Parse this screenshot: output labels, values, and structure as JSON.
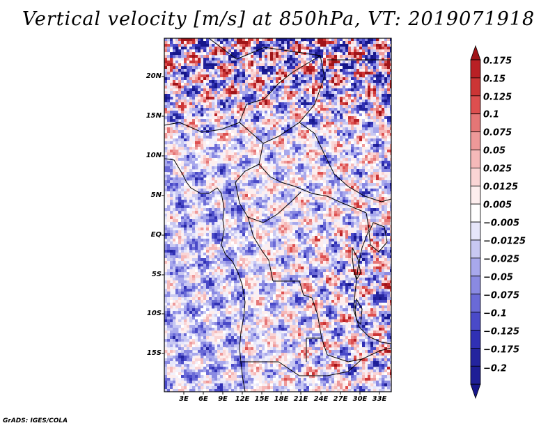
{
  "title": "Vertical velocity [m/s] at 850hPa, VT: 2019071918",
  "credit": "GrADS: IGES/COLA",
  "map": {
    "variable": "Vertical velocity",
    "units": "m/s",
    "level": "850hPa",
    "valid_time": "2019071918",
    "lat_labels": [
      "20N",
      "15N",
      "10N",
      "5N",
      "EQ",
      "5S",
      "10S",
      "15S"
    ],
    "lon_labels": [
      "3E",
      "6E",
      "9E",
      "12E",
      "15E",
      "18E",
      "21E",
      "24E",
      "27E",
      "30E",
      "33E"
    ]
  },
  "colorbar": {
    "labels": [
      "0.175",
      "0.15",
      "0.125",
      "0.1",
      "0.075",
      "0.05",
      "0.025",
      "0.0125",
      "0.005",
      "−0.005",
      "−0.0125",
      "−0.025",
      "−0.05",
      "−0.075",
      "−0.1",
      "−0.125",
      "−0.175",
      "−0.2"
    ],
    "colors": [
      "#a01418",
      "#b92025",
      "#cc3535",
      "#dd4f4f",
      "#e57676",
      "#ee9999",
      "#f5b9b9",
      "#fad5d5",
      "#fdeeee",
      "#ffffff",
      "#e6e6fa",
      "#c8c8f2",
      "#a8a8ec",
      "#8a8ae2",
      "#6a6ad6",
      "#4a4ac8",
      "#3030b4",
      "#24249e",
      "#1e1e96",
      "#16168a"
    ]
  }
}
